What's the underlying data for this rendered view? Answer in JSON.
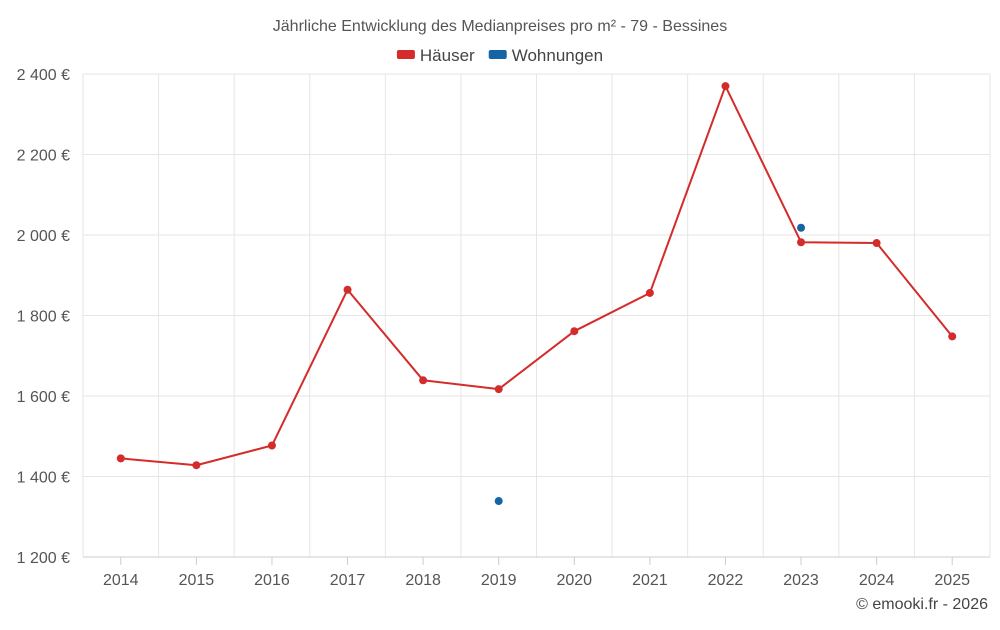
{
  "chart_data": {
    "type": "line",
    "title": "Jährliche Entwicklung des Medianpreises pro m² - 79 - Bessines",
    "categories": [
      "2014",
      "2015",
      "2016",
      "2017",
      "2018",
      "2019",
      "2020",
      "2021",
      "2022",
      "2023",
      "2024",
      "2025"
    ],
    "y_ticks": [
      "1 200 €",
      "1 400 €",
      "1 600 €",
      "1 800 €",
      "2 000 €",
      "2 200 €",
      "2 400 €"
    ],
    "ylim": [
      1200,
      2400
    ],
    "grid": true,
    "legend_position": "top-center",
    "series": [
      {
        "name": "Häuser",
        "color": "#d42b2b",
        "style": "line",
        "values": [
          1445,
          1428,
          1477,
          1864,
          1639,
          1617,
          1761,
          1856,
          2370,
          1982,
          1980,
          1748
        ]
      },
      {
        "name": "Wohnungen",
        "color": "#1565a6",
        "style": "points",
        "values": [
          null,
          null,
          null,
          null,
          null,
          1339,
          null,
          null,
          null,
          2018,
          null,
          null
        ]
      }
    ],
    "credit": "© emooki.fr - 2026"
  }
}
